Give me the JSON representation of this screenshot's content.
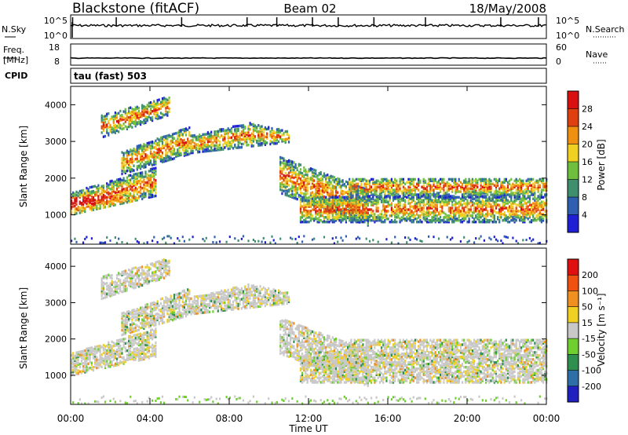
{
  "header": {
    "title_left": "Blackstone (fitACF)",
    "title_center": "Beam 02",
    "title_right": "18/May/2008"
  },
  "chart_data": [
    {
      "type": "line",
      "name": "noise-panel",
      "left_label": "N.Sky",
      "right_label": "N.Search",
      "left_ticks": [
        "10^5",
        "10^0"
      ],
      "right_ticks": [
        "10^5",
        "10^0"
      ],
      "legend_style_left": "solid",
      "legend_style_right": "dotted"
    },
    {
      "type": "line",
      "name": "frequency-panel",
      "left_label_line1": "Freq.",
      "left_label_line2": "[MHz]",
      "right_label": "Nave",
      "left_ticks": [
        18,
        8
      ],
      "right_ticks": [
        60,
        0
      ],
      "freq_mhz_level": 10
    },
    {
      "type": "table",
      "name": "cpid-panel",
      "label": "CPID",
      "mode_text": "tau (fast) 503"
    },
    {
      "type": "heatmap",
      "name": "power-panel",
      "ylabel": "Slant Range [km]",
      "y_ticks": [
        1000,
        2000,
        3000,
        4000
      ],
      "ylim": [
        200,
        4500
      ],
      "colorbar_label": "Power [dB]",
      "colorbar_ticks": [
        4,
        8,
        12,
        16,
        20,
        24,
        28
      ],
      "colors": [
        "#1f1fd6",
        "#2f5fb0",
        "#3f8f6f",
        "#6fbf3f",
        "#f0d020",
        "#f09010",
        "#e04010",
        "#d81010"
      ]
    },
    {
      "type": "heatmap",
      "name": "velocity-panel",
      "ylabel": "Slant Range [km]",
      "y_ticks": [
        1000,
        2000,
        3000,
        4000
      ],
      "ylim": [
        200,
        4500
      ],
      "colorbar_label": "Velocity [m s⁻¹]",
      "colorbar_ticks": [
        200,
        100,
        50,
        15,
        -15,
        -50,
        -100,
        -200
      ],
      "colors": [
        "#2020c0",
        "#2f6fa8",
        "#2f8f4f",
        "#6fcf2f",
        "#c8c8c8",
        "#f0d020",
        "#f09020",
        "#f05010",
        "#e01010"
      ]
    }
  ],
  "time_axis": {
    "label": "Time UT",
    "ticks": [
      "00:00",
      "04:00",
      "08:00",
      "12:00",
      "16:00",
      "20:00",
      "00:00"
    ],
    "xlim_hours": [
      0,
      24
    ]
  }
}
